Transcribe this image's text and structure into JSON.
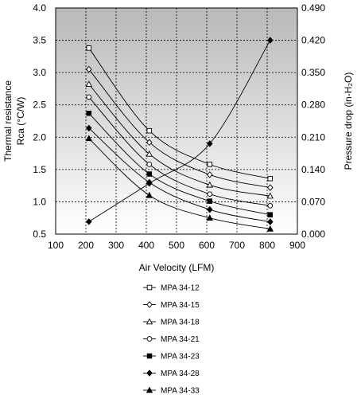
{
  "chart_data": {
    "type": "line",
    "xlabel": "Air Velocity (LFM)",
    "ylabel_left": [
      "Thermal resistance",
      "Rca (°C/W)"
    ],
    "ylabel_right": "Pressure drop (in-H₂O)",
    "xlim": [
      100,
      900
    ],
    "xticks": [
      "100",
      "200",
      "300",
      "400",
      "500",
      "600",
      "700",
      "800",
      "900"
    ],
    "ylim_left": [
      0.5,
      4.0
    ],
    "yticks_left": [
      "0.5",
      "1.0",
      "1.5",
      "2.0",
      "2.5",
      "3.0",
      "3.5",
      "4.0"
    ],
    "ylim_right": [
      0.0,
      0.49
    ],
    "yticks_right": [
      "0.000",
      "0.070",
      "0.140",
      "0.210",
      "0.280",
      "0.350",
      "0.420",
      "0.490"
    ],
    "grid": true,
    "legend_position": "bottom",
    "x": [
      210,
      410,
      610,
      810
    ],
    "series": [
      {
        "name": "MPA 34-12",
        "marker": "square-open",
        "axis": "left",
        "values": [
          3.38,
          2.1,
          1.58,
          1.36
        ]
      },
      {
        "name": "MPA 34-15",
        "marker": "diamond-open",
        "axis": "left",
        "values": [
          3.05,
          1.92,
          1.42,
          1.22
        ]
      },
      {
        "name": "MPA 34-18",
        "marker": "triangle-open",
        "axis": "left",
        "values": [
          2.82,
          1.74,
          1.26,
          1.09
        ]
      },
      {
        "name": "MPA 34-21",
        "marker": "circle-open",
        "axis": "left",
        "values": [
          2.62,
          1.58,
          1.12,
          0.94
        ]
      },
      {
        "name": "MPA 34-23",
        "marker": "square-filled",
        "axis": "left",
        "values": [
          2.37,
          1.43,
          1.01,
          0.8
        ]
      },
      {
        "name": "MPA 34-28",
        "marker": "diamond-filled",
        "axis": "left",
        "values": [
          2.14,
          1.3,
          0.88,
          0.69
        ]
      },
      {
        "name": "MPA 34-33",
        "marker": "triangle-filled",
        "axis": "left",
        "values": [
          1.98,
          1.1,
          0.75,
          0.58
        ]
      }
    ],
    "pressure_drop": {
      "axis": "right",
      "marker": "diamond-filled",
      "values": [
        0.027,
        0.11,
        0.196,
        0.42
      ]
    }
  }
}
